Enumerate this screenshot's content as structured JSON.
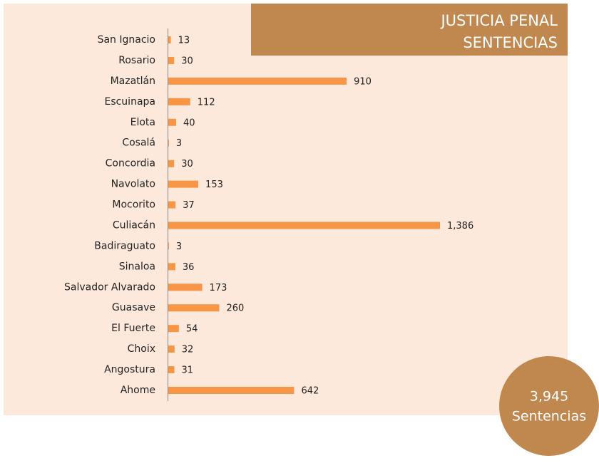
{
  "chart_data": {
    "type": "bar",
    "orientation": "horizontal",
    "title": "JUSTICIA PENAL",
    "subtitle": "SENTENCIAS",
    "categories": [
      "San Ignacio",
      "Rosario",
      "Mazatlán",
      "Escuinapa",
      "Elota",
      "Cosalá",
      "Concordia",
      "Navolato",
      "Mocorito",
      "Culiacán",
      "Badiraguato",
      "Sinaloa",
      "Salvador Alvarado",
      "Guasave",
      "El Fuerte",
      "Choix",
      "Angostura",
      "Ahome"
    ],
    "values": [
      13,
      30,
      910,
      112,
      40,
      3,
      30,
      153,
      37,
      1386,
      3,
      36,
      173,
      260,
      54,
      32,
      31,
      642
    ],
    "value_labels": [
      "13",
      "30",
      "910",
      "112",
      "40",
      "3",
      "30",
      "153",
      "37",
      "1,386",
      "3",
      "36",
      "173",
      "260",
      "54",
      "32",
      "31",
      "642"
    ],
    "color": "#f79646",
    "total": 3945,
    "total_label": "3,945",
    "total_caption": "Sentencias"
  }
}
